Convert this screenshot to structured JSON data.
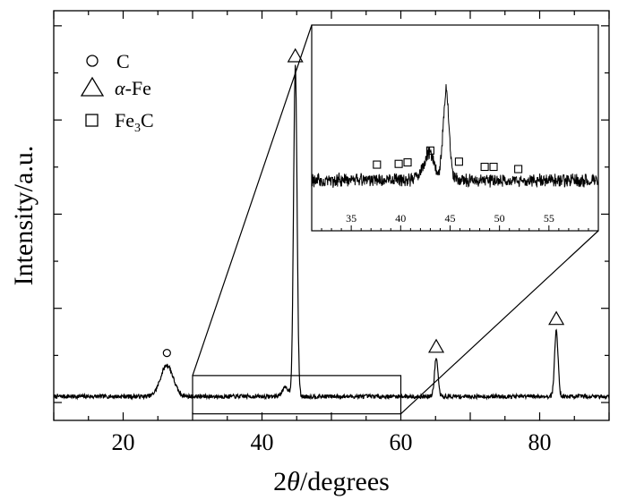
{
  "chart_data": [
    {
      "type": "line",
      "xlabel_prefix": "2",
      "xlabel_symbol": "θ",
      "xlabel_suffix": "/degrees",
      "ylabel": "Intensity/a.u.",
      "xlim": [
        10,
        90
      ],
      "ylim": [
        0,
        1
      ],
      "x_ticks": [
        20,
        40,
        60,
        80
      ],
      "y_ticks_labeled": false,
      "grid": false,
      "legend": {
        "placement": "top-left",
        "entries": [
          {
            "symbol": "circle",
            "pre": "C",
            "sym": "",
            "post": "",
            "sub": "",
            "tail": ""
          },
          {
            "symbol": "triangle",
            "pre": "",
            "sym": "α",
            "post": "-Fe",
            "sub": "",
            "tail": ""
          },
          {
            "symbol": "square",
            "pre": "Fe",
            "sym": "",
            "post": "",
            "sub": "3",
            "tail": "C"
          }
        ]
      },
      "series": [
        {
          "baseline": 0.02,
          "noise": 0.006,
          "peaks": [
            {
              "x": 26.3,
              "height": 0.09,
              "width": 0.9,
              "phase": "C"
            },
            {
              "x": 44.8,
              "height": 0.95,
              "width": 0.25,
              "phase": "α-Fe"
            },
            {
              "x": 43.4,
              "height": 0.025,
              "width": 0.5,
              "phase": ""
            },
            {
              "x": 65.1,
              "height": 0.11,
              "width": 0.25,
              "phase": "α-Fe"
            },
            {
              "x": 82.4,
              "height": 0.19,
              "width": 0.25,
              "phase": "α-Fe"
            }
          ]
        }
      ],
      "markers": [
        {
          "phase": "C",
          "symbol": "circle",
          "x": 26.3,
          "y": 0.145
        },
        {
          "phase": "α-Fe",
          "symbol": "triangle",
          "x": 44.8,
          "y": 1.0
        },
        {
          "phase": "α-Fe",
          "symbol": "triangle",
          "x": 65.1,
          "y": 0.165
        },
        {
          "phase": "α-Fe",
          "symbol": "triangle",
          "x": 82.4,
          "y": 0.245
        }
      ],
      "zoom_box": {
        "xlim": [
          30,
          60
        ],
        "ylim": [
          -0.03,
          0.08
        ]
      }
    },
    {
      "type": "line",
      "role": "inset",
      "xlim": [
        31,
        60
      ],
      "ylim": [
        0,
        1
      ],
      "x_ticks": [
        35,
        40,
        45,
        50,
        55
      ],
      "series": [
        {
          "baseline": 0.2,
          "noise": 0.035,
          "peaks": [
            {
              "x": 44.6,
              "height": 1.2,
              "width": 0.3
            },
            {
              "x": 43.0,
              "height": 0.3,
              "width": 0.45
            },
            {
              "x": 42.4,
              "height": 0.1,
              "width": 0.6
            }
          ]
        }
      ],
      "markers": [
        {
          "phase": "Fe3C",
          "symbol": "square",
          "x": 37.6,
          "y": 0.41
        },
        {
          "phase": "Fe3C",
          "symbol": "square",
          "x": 39.8,
          "y": 0.42
        },
        {
          "phase": "Fe3C",
          "symbol": "square",
          "x": 40.7,
          "y": 0.44
        },
        {
          "phase": "Fe3C",
          "symbol": "square",
          "x": 43.0,
          "y": 0.6
        },
        {
          "phase": "Fe3C",
          "symbol": "square",
          "x": 45.9,
          "y": 0.45
        },
        {
          "phase": "Fe3C",
          "symbol": "square",
          "x": 48.5,
          "y": 0.38
        },
        {
          "phase": "Fe3C",
          "symbol": "square",
          "x": 49.4,
          "y": 0.38
        },
        {
          "phase": "Fe3C",
          "symbol": "square",
          "x": 51.9,
          "y": 0.35
        }
      ]
    }
  ]
}
